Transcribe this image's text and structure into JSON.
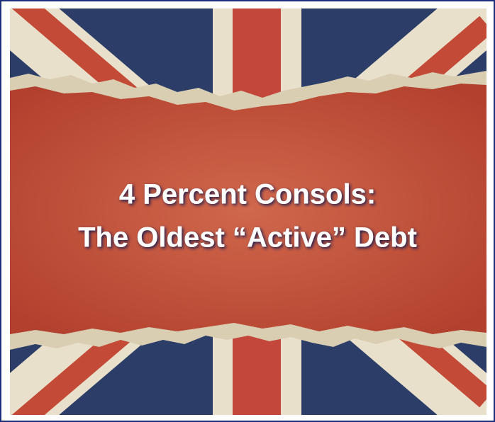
{
  "title": {
    "line1": "4 Percent Consols:",
    "line2": "The Oldest “Active” Debt"
  }
}
